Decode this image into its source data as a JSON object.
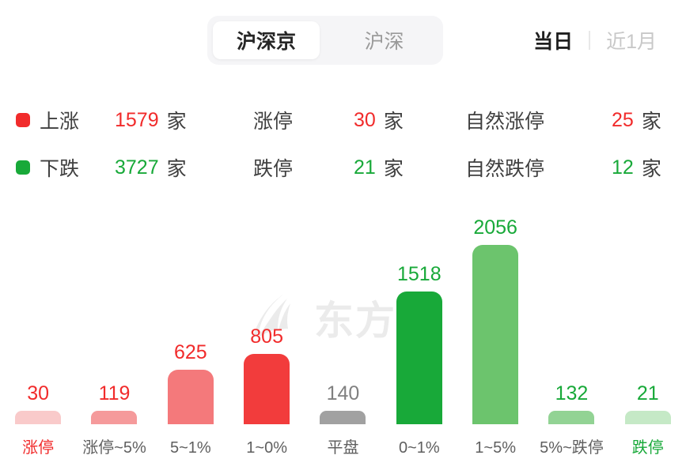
{
  "header": {
    "market_tabs": [
      {
        "label": "沪深京",
        "selected": true
      },
      {
        "label": "沪深",
        "selected": false
      }
    ],
    "period_tabs": [
      {
        "label": "当日",
        "selected": true
      },
      {
        "label": "近1月",
        "selected": false
      }
    ]
  },
  "stats": {
    "rows": [
      {
        "direction": "up",
        "marker_color": "#f12b2b",
        "value_color": "#f12b2b",
        "groups": [
          {
            "label": "上涨",
            "value": "1579",
            "unit": "家"
          },
          {
            "label": "涨停",
            "value": "30",
            "unit": "家"
          },
          {
            "label": "自然涨停",
            "value": "25",
            "unit": "家"
          }
        ]
      },
      {
        "direction": "down",
        "marker_color": "#18a939",
        "value_color": "#18a939",
        "groups": [
          {
            "label": "下跌",
            "value": "3727",
            "unit": "家"
          },
          {
            "label": "跌停",
            "value": "21",
            "unit": "家"
          },
          {
            "label": "自然跌停",
            "value": "12",
            "unit": "家"
          }
        ]
      }
    ]
  },
  "watermark": {
    "text": "东方财",
    "logo": "eastmoney-logo",
    "color": "#ebebeb"
  },
  "chart_data": {
    "type": "bar",
    "title": "",
    "xlabel": "",
    "ylabel": "",
    "categories": [
      "涨停",
      "涨停~5%",
      "5~1%",
      "1~0%",
      "平盘",
      "0~1%",
      "1~5%",
      "5%~跌停",
      "跌停"
    ],
    "values": [
      30,
      119,
      625,
      805,
      140,
      1518,
      2056,
      132,
      21
    ],
    "ylim": [
      0,
      2056
    ],
    "grid": false,
    "legend_position": "none",
    "bar_colors": [
      "#f9caca",
      "#f59a9b",
      "#f4797b",
      "#f23c3c",
      "#a1a1a1",
      "#18a939",
      "#6cc46d",
      "#92d394",
      "#c5e9c6"
    ],
    "value_label_colors": [
      "#f12b2b",
      "#f12b2b",
      "#f12b2b",
      "#f12b2b",
      "#808080",
      "#18a939",
      "#18a939",
      "#18a939",
      "#18a939"
    ],
    "category_label_colors": [
      "#f12b2b",
      "#5f5f5f",
      "#5f5f5f",
      "#5f5f5f",
      "#5f5f5f",
      "#5f5f5f",
      "#5f5f5f",
      "#5f5f5f",
      "#18a939"
    ]
  }
}
